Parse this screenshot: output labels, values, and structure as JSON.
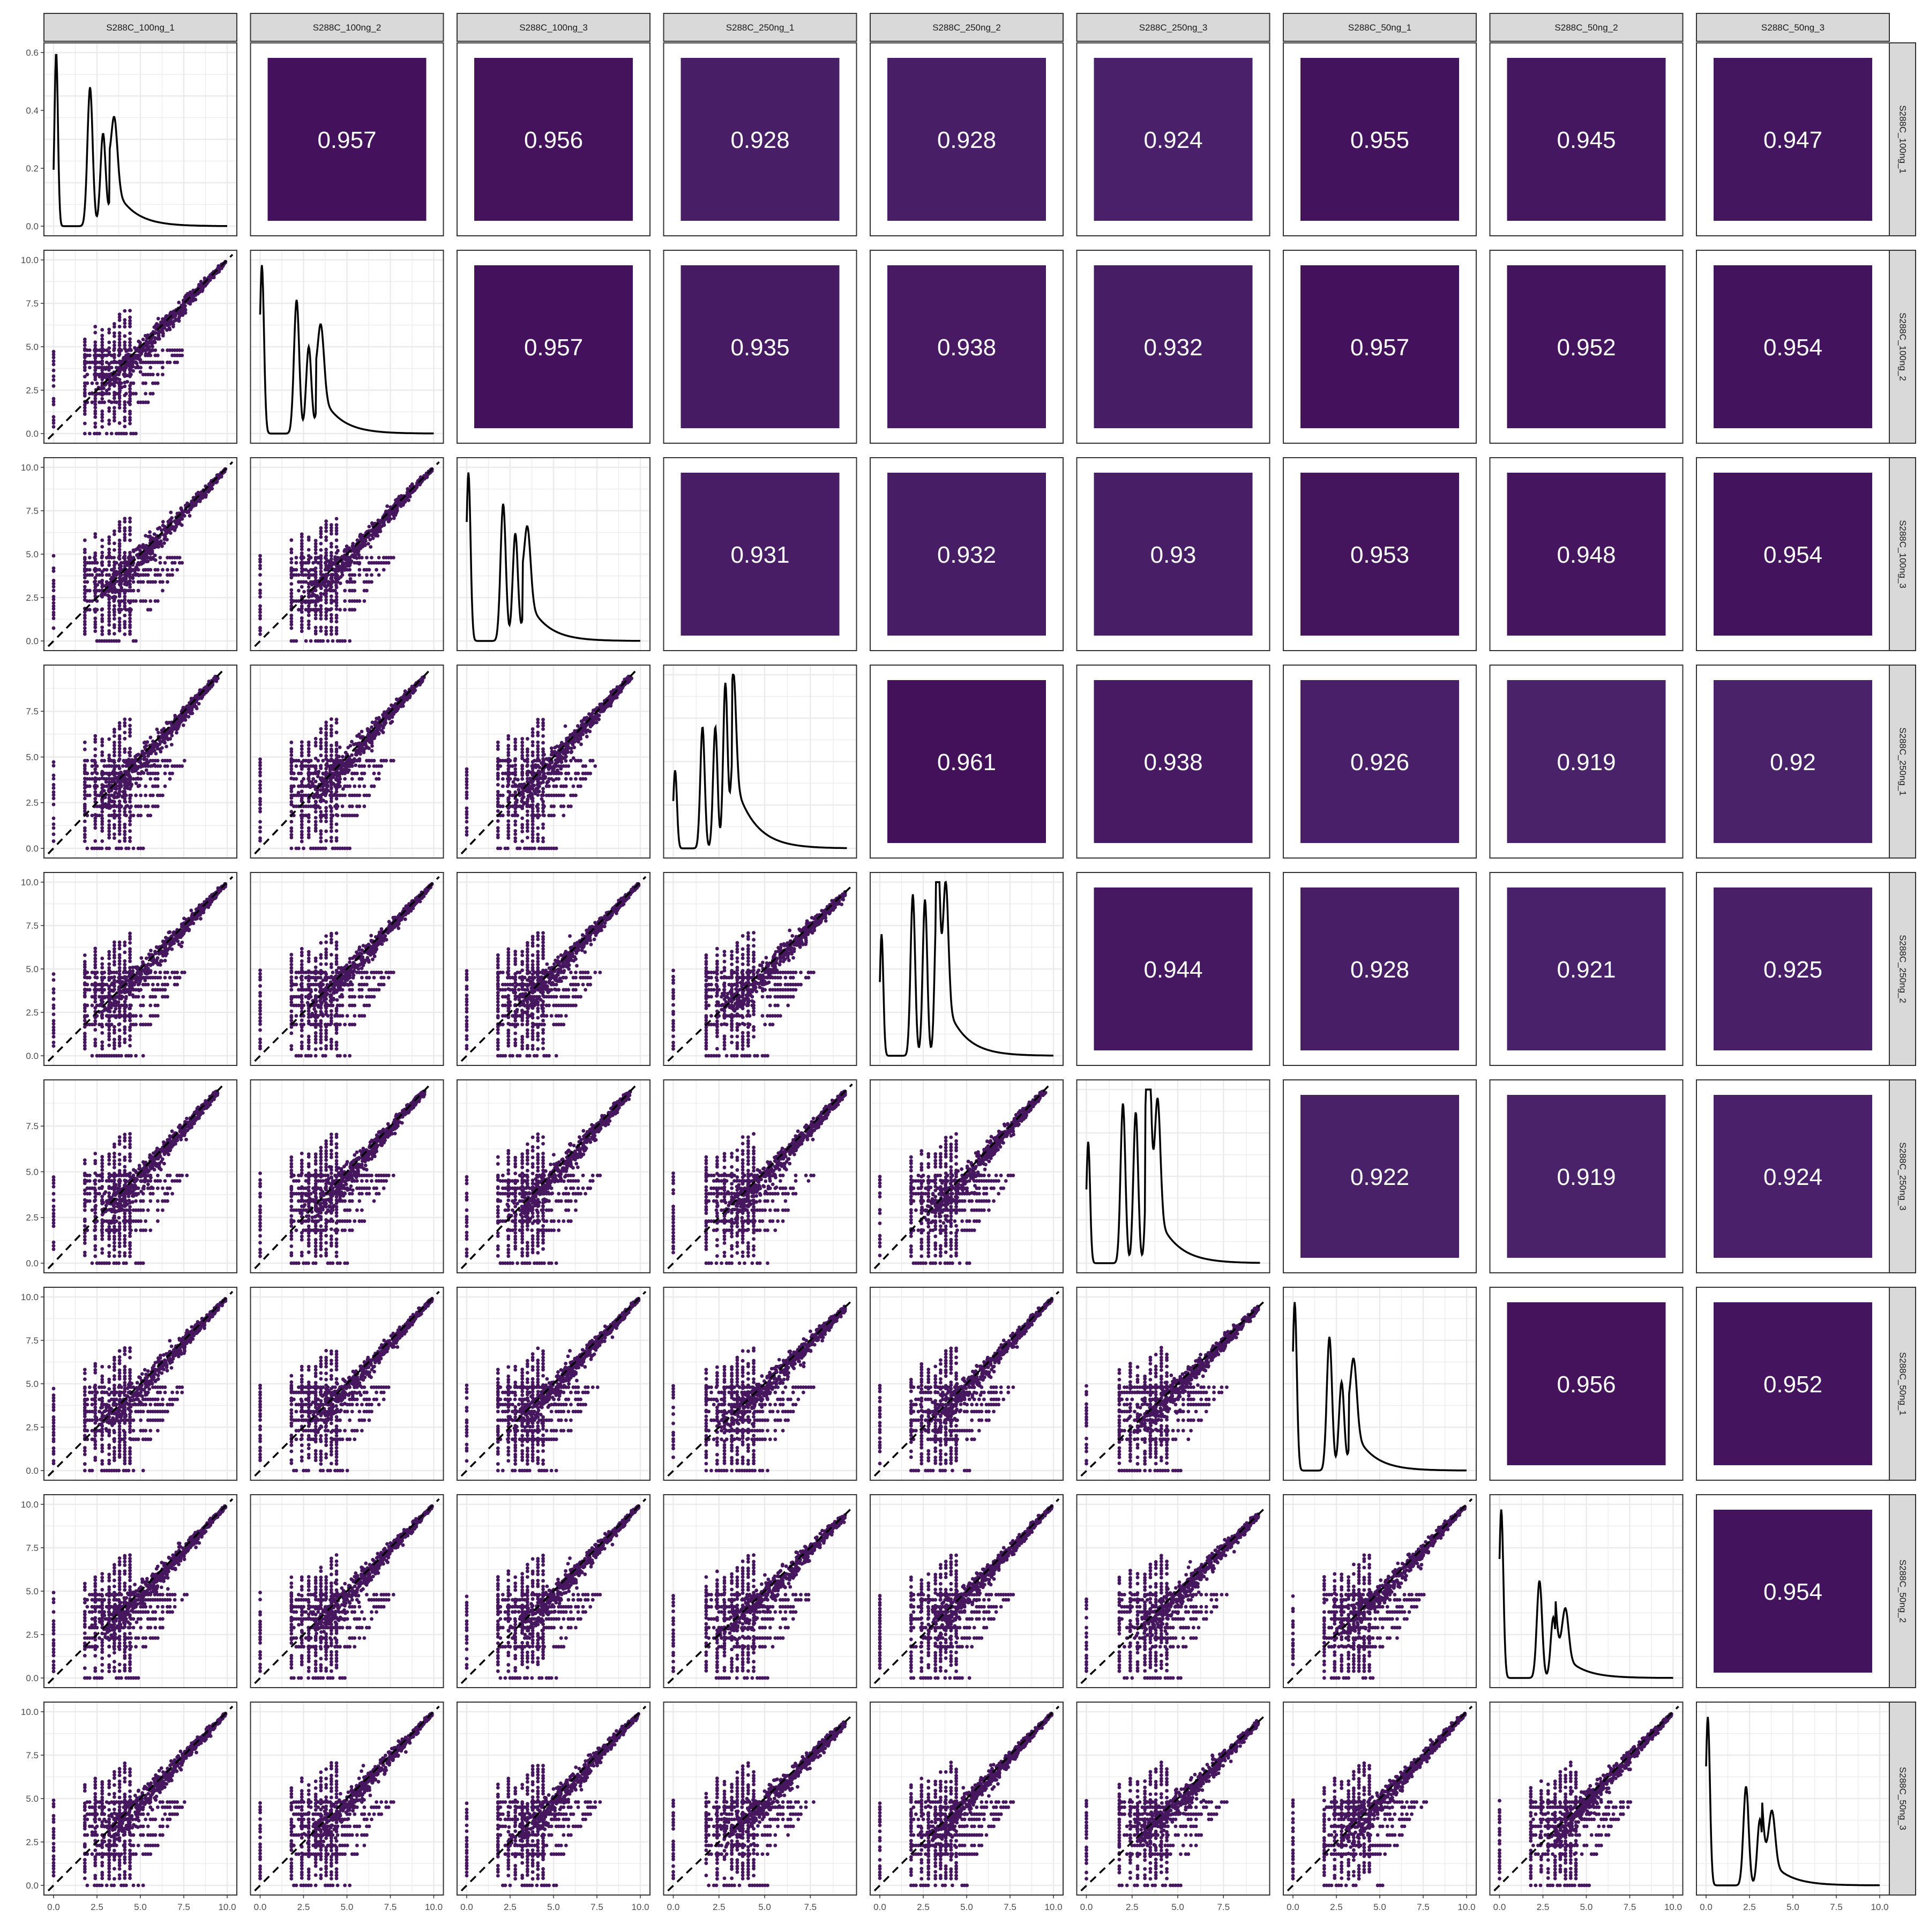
{
  "chart_data": {
    "type": "scatter-matrix",
    "title": "",
    "samples": [
      "S288C_100ng_1",
      "S288C_100ng_2",
      "S288C_100ng_3",
      "S288C_250ng_1",
      "S288C_250ng_2",
      "S288C_250ng_3",
      "S288C_50ng_1",
      "S288C_50ng_2",
      "S288C_50ng_3"
    ],
    "correlations": [
      [
        null,
        0.957,
        0.956,
        0.928,
        0.928,
        0.924,
        0.955,
        0.945,
        0.947
      ],
      [
        null,
        null,
        0.957,
        0.935,
        0.938,
        0.932,
        0.957,
        0.952,
        0.954
      ],
      [
        null,
        null,
        null,
        0.931,
        0.932,
        0.93,
        0.953,
        0.948,
        0.954
      ],
      [
        null,
        null,
        null,
        null,
        0.961,
        0.938,
        0.926,
        0.919,
        0.92
      ],
      [
        null,
        null,
        null,
        null,
        null,
        0.944,
        0.928,
        0.921,
        0.925
      ],
      [
        null,
        null,
        null,
        null,
        null,
        null,
        0.922,
        0.919,
        0.924
      ],
      [
        null,
        null,
        null,
        null,
        null,
        null,
        null,
        0.956,
        0.952
      ],
      [
        null,
        null,
        null,
        null,
        null,
        null,
        null,
        null,
        0.954
      ],
      [
        null,
        null,
        null,
        null,
        null,
        null,
        null,
        null,
        null
      ]
    ],
    "axis_max": [
      10.0,
      10.0,
      10.0,
      9.5,
      10.0,
      9.5,
      10.0,
      10.0,
      10.0
    ],
    "x_ticks": [
      [
        "0.0",
        "2.5",
        "5.0",
        "7.5",
        "10.0"
      ],
      [
        "0.0",
        "2.5",
        "5.0",
        "7.5",
        "10.0"
      ],
      [
        "0.0",
        "2.5",
        "5.0",
        "7.5",
        "10.0"
      ],
      [
        "0.0",
        "2.5",
        "5.0",
        "7.5"
      ],
      [
        "0.0",
        "2.5",
        "5.0",
        "7.5",
        "10.0"
      ],
      [
        "0.0",
        "2.5",
        "5.0",
        "7.5"
      ],
      [
        "0.0",
        "2.5",
        "5.0",
        "7.5",
        "10.0"
      ],
      [
        "0.0",
        "2.5",
        "5.0",
        "7.5",
        "10.0"
      ],
      [
        "0.0",
        "2.5",
        "5.0",
        "7.5",
        "10.0"
      ]
    ],
    "density_peaks": [
      [
        [
          0.15,
          0.6,
          0.1
        ],
        [
          2.1,
          0.48,
          0.15
        ],
        [
          2.85,
          0.32,
          0.15
        ],
        [
          3.5,
          0.24,
          0.18
        ]
      ],
      [
        [
          0.1,
          9.7,
          0.12
        ],
        [
          2.1,
          7.7,
          0.15
        ],
        [
          2.8,
          5.0,
          0.15
        ],
        [
          3.5,
          4.0,
          0.18
        ]
      ],
      [
        [
          0.1,
          9.7,
          0.12
        ],
        [
          2.1,
          7.9,
          0.15
        ],
        [
          2.8,
          6.2,
          0.15
        ],
        [
          3.5,
          4.2,
          0.18
        ]
      ],
      [
        [
          0.1,
          4.5,
          0.1
        ],
        [
          1.6,
          7.0,
          0.12
        ],
        [
          2.3,
          7.0,
          0.12
        ],
        [
          2.85,
          9.5,
          0.12
        ],
        [
          3.3,
          6.0,
          0.14
        ]
      ],
      [
        [
          0.1,
          7.0,
          0.1
        ],
        [
          1.9,
          9.3,
          0.13
        ],
        [
          2.6,
          9.0,
          0.13
        ],
        [
          3.3,
          9.6,
          0.13
        ],
        [
          3.8,
          7.0,
          0.15
        ]
      ],
      [
        [
          0.1,
          7.0,
          0.1
        ],
        [
          2.0,
          9.2,
          0.13
        ],
        [
          2.7,
          8.7,
          0.13
        ],
        [
          3.4,
          9.6,
          0.13
        ],
        [
          3.9,
          6.8,
          0.15
        ]
      ],
      [
        [
          0.1,
          9.7,
          0.12
        ],
        [
          2.1,
          7.7,
          0.15
        ],
        [
          2.8,
          5.1,
          0.15
        ],
        [
          3.5,
          4.1,
          0.18
        ]
      ],
      [
        [
          0.1,
          9.7,
          0.12
        ],
        [
          2.3,
          5.6,
          0.15
        ],
        [
          3.1,
          3.5,
          0.15
        ],
        [
          3.8,
          2.8,
          0.18
        ]
      ],
      [
        [
          0.1,
          9.7,
          0.12
        ],
        [
          2.3,
          5.7,
          0.15
        ],
        [
          3.1,
          3.8,
          0.15
        ],
        [
          3.8,
          3.0,
          0.18
        ]
      ]
    ],
    "density_first_panel_y_ticks": [
      "0.0",
      "0.2",
      "0.4",
      "0.6"
    ],
    "scatter_y_ticks": [
      "0.0",
      "2.5",
      "5.0",
      "7.5",
      "10.0"
    ],
    "colors": {
      "point": "#46175F",
      "diagonal_line": "#000000",
      "strip_bg": "#D9D9D9",
      "corr_text": "#FFFFFF"
    },
    "grid": true,
    "legend": "none"
  }
}
